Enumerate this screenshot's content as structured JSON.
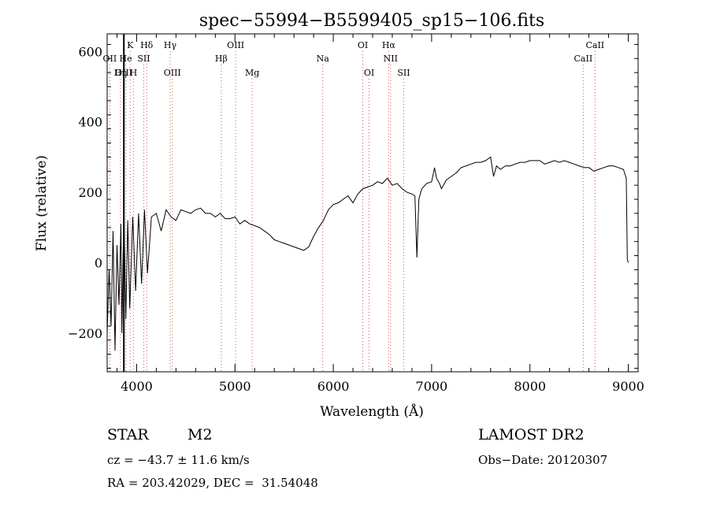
{
  "chart_data": {
    "type": "line",
    "title": "spec−55994−B5599405_sp15−106.fits",
    "xlabel": "Wavelength (Å)",
    "ylabel": "Flux (relative)",
    "xlim": [
      3700,
      9100
    ],
    "ylim": [
      -310,
      650
    ],
    "x_ticks": [
      {
        "value": 4000,
        "label": "4000"
      },
      {
        "value": 5000,
        "label": "5000"
      },
      {
        "value": 6000,
        "label": "6000"
      },
      {
        "value": 7000,
        "label": "7000"
      },
      {
        "value": 8000,
        "label": "8000"
      },
      {
        "value": 9000,
        "label": "9000"
      }
    ],
    "y_ticks": [
      {
        "value": -200,
        "label": "−200"
      },
      {
        "value": 0,
        "label": "0"
      },
      {
        "value": 200,
        "label": "200"
      },
      {
        "value": 400,
        "label": "400"
      },
      {
        "value": 600,
        "label": "600"
      }
    ],
    "spectral_lines": [
      {
        "label": "Hδ",
        "wavelength": 4102,
        "row": 0
      },
      {
        "label": "K",
        "wavelength": 3934,
        "row": 0
      },
      {
        "label": "Hγ",
        "wavelength": 4341,
        "row": 0
      },
      {
        "label": "OIII",
        "wavelength": 5007,
        "row": 0
      },
      {
        "label": "OI",
        "wavelength": 6300,
        "row": 0
      },
      {
        "label": "Hα",
        "wavelength": 6563,
        "row": 0
      },
      {
        "label": "CaII",
        "wavelength": 8662,
        "row": 0
      },
      {
        "label": "OII",
        "wavelength": 3727,
        "row": 1
      },
      {
        "label": "He",
        "wavelength": 3889,
        "row": 1
      },
      {
        "label": "SII",
        "wavelength": 4072,
        "row": 1
      },
      {
        "label": "Hβ",
        "wavelength": 4861,
        "row": 1
      },
      {
        "label": "Na",
        "wavelength": 5893,
        "row": 1
      },
      {
        "label": "NII",
        "wavelength": 6583,
        "row": 1
      },
      {
        "label": "CaII",
        "wavelength": 8542,
        "row": 1
      },
      {
        "label": "OIII",
        "wavelength": 3869,
        "row": 2
      },
      {
        "label": "Hη",
        "wavelength": 3835,
        "row": 2
      },
      {
        "label": "H",
        "wavelength": 3968,
        "row": 2
      },
      {
        "label": "OIII",
        "wavelength": 4363,
        "row": 2
      },
      {
        "label": "Mg",
        "wavelength": 5175,
        "row": 2
      },
      {
        "label": "OI",
        "wavelength": 6364,
        "row": 2
      },
      {
        "label": "SII",
        "wavelength": 6716,
        "row": 2
      }
    ],
    "series": [
      {
        "x": [
          3700,
          3720,
          3740,
          3760,
          3780,
          3800,
          3820,
          3840,
          3850,
          3870,
          3890,
          3910,
          3930,
          3960,
          3990,
          4020,
          4050,
          4080,
          4110,
          4150,
          4200,
          4250,
          4300,
          4350,
          4400,
          4450,
          4500,
          4550,
          4600,
          4650,
          4700,
          4750,
          4800,
          4850,
          4900,
          4950,
          5000,
          5050,
          5100,
          5150,
          5200,
          5250,
          5300,
          5350,
          5400,
          5450,
          5500,
          5550,
          5600,
          5650,
          5700,
          5750,
          5800,
          5850,
          5900,
          5950,
          6000,
          6050,
          6100,
          6150,
          6200,
          6250,
          6300,
          6350,
          6400,
          6450,
          6500,
          6550,
          6600,
          6650,
          6700,
          6750,
          6800,
          6830,
          6850,
          6870,
          6900,
          6950,
          7000,
          7030,
          7050,
          7080,
          7100,
          7150,
          7200,
          7250,
          7300,
          7350,
          7400,
          7450,
          7500,
          7550,
          7600,
          7630,
          7660,
          7700,
          7750,
          7800,
          7850,
          7900,
          7950,
          8000,
          8050,
          8100,
          8150,
          8200,
          8250,
          8300,
          8350,
          8400,
          8450,
          8500,
          8550,
          8600,
          8650,
          8700,
          8750,
          8800,
          8850,
          8900,
          8950,
          8980,
          8990,
          9000
        ],
        "y": [
          -200,
          -20,
          -180,
          90,
          -250,
          50,
          -120,
          110,
          -200,
          150,
          -160,
          120,
          -130,
          130,
          -80,
          140,
          -60,
          150,
          -30,
          130,
          140,
          90,
          150,
          130,
          120,
          150,
          145,
          140,
          150,
          155,
          140,
          140,
          130,
          140,
          125,
          125,
          130,
          110,
          120,
          110,
          105,
          100,
          90,
          80,
          65,
          60,
          55,
          50,
          45,
          40,
          35,
          45,
          75,
          100,
          120,
          150,
          165,
          170,
          180,
          190,
          170,
          195,
          210,
          215,
          220,
          230,
          225,
          240,
          220,
          225,
          210,
          200,
          195,
          190,
          15,
          180,
          210,
          225,
          230,
          270,
          240,
          225,
          210,
          235,
          245,
          255,
          270,
          275,
          280,
          285,
          285,
          290,
          300,
          245,
          275,
          265,
          275,
          275,
          280,
          285,
          285,
          290,
          290,
          290,
          280,
          285,
          290,
          285,
          290,
          285,
          280,
          275,
          270,
          270,
          260,
          265,
          270,
          275,
          275,
          270,
          265,
          240,
          10,
          0
        ]
      }
    ]
  },
  "footer": {
    "object_type": "STAR",
    "subclass": "M2",
    "survey": "LAMOST DR2",
    "redshift": "cz = −43.7 ± 11.6 km/s",
    "obs_date": "Obs−Date: 20120307",
    "coords": "RA = 203.42029, DEC =  31.54048"
  }
}
